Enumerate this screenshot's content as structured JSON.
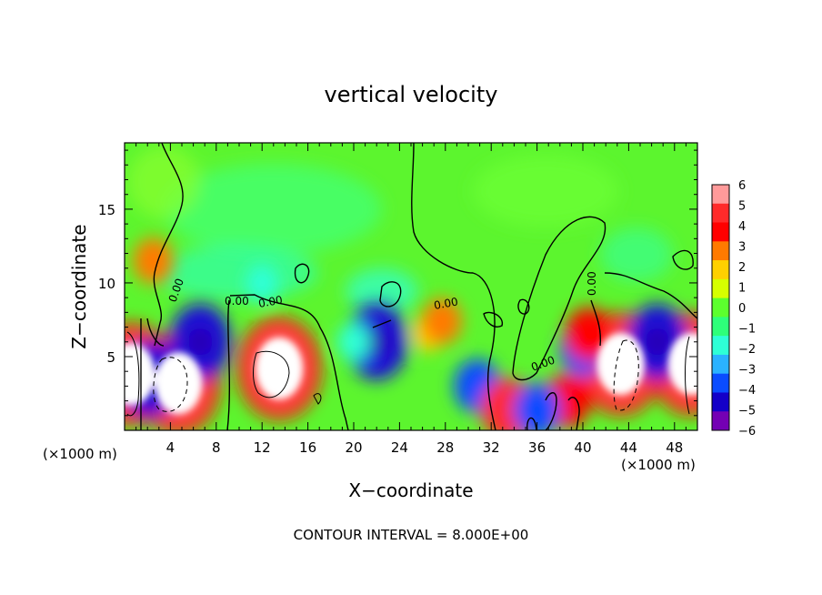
{
  "chart_data": {
    "type": "heatmap",
    "title": "vertical velocity",
    "xlabel": "X−coordinate",
    "ylabel": "Z−coordinate",
    "x_unit_label": "(×1000 m)",
    "y_unit_label": "(×1000 m)",
    "xlim": [
      0,
      50
    ],
    "ylim": [
      0,
      19.5
    ],
    "xticks": [
      "4",
      "8",
      "12",
      "16",
      "20",
      "24",
      "28",
      "32",
      "36",
      "40",
      "44",
      "48"
    ],
    "yticks": [
      "5",
      "10",
      "15"
    ],
    "colorbar": {
      "ticks": [
        "6",
        "5",
        "4",
        "3",
        "2",
        "1",
        "0",
        "−1",
        "−2",
        "−3",
        "−4",
        "−5",
        "−6"
      ],
      "colors": [
        "#ff9a9a",
        "#ff2a2a",
        "#ff0000",
        "#ff7a00",
        "#ffd000",
        "#d6ff00",
        "#5cff2e",
        "#2eff7a",
        "#2effd6",
        "#2ab2ff",
        "#0a4cff",
        "#1400c8",
        "#7400b4"
      ],
      "range": [
        -6,
        6
      ]
    },
    "contour_labels": [
      "0.00",
      "0.00",
      "0.00",
      "0.00",
      "0.00",
      "0.00"
    ],
    "footer": "CONTOUR INTERVAL = 8.000E+00",
    "features": [
      {
        "x": 0.6,
        "z": 3.8,
        "value": 8
      },
      {
        "x": 4.7,
        "z": 3.2,
        "value": 8
      },
      {
        "x": 13.5,
        "z": 4.2,
        "value": 8
      },
      {
        "x": 43.3,
        "z": 4.5,
        "value": 8
      },
      {
        "x": 49.5,
        "z": 4.5,
        "value": 8
      },
      {
        "x": 2.2,
        "z": 3.5,
        "value": -5
      },
      {
        "x": 6.6,
        "z": 6.0,
        "value": -5
      },
      {
        "x": 22.0,
        "z": 6.0,
        "value": -5
      },
      {
        "x": 30.8,
        "z": 3.0,
        "value": -4
      },
      {
        "x": 40.0,
        "z": 5.5,
        "value": -4
      },
      {
        "x": 46.5,
        "z": 6.0,
        "value": -5
      },
      {
        "x": 2.5,
        "z": 11.5,
        "value": 3
      },
      {
        "x": 33.5,
        "z": 1.4,
        "value": 5
      },
      {
        "x": 38.6,
        "z": 2.0,
        "value": 4
      },
      {
        "x": 40.5,
        "z": 6.5,
        "value": 4
      },
      {
        "x": 26.5,
        "z": 6.6,
        "value": 2
      },
      {
        "x": 27.7,
        "z": 7.4,
        "value": 3
      },
      {
        "x": 36.0,
        "z": 1.4,
        "value": -4
      },
      {
        "x": 12.0,
        "z": 10.0,
        "value": -2
      },
      {
        "x": 20.0,
        "z": 6.0,
        "value": -2
      }
    ]
  }
}
